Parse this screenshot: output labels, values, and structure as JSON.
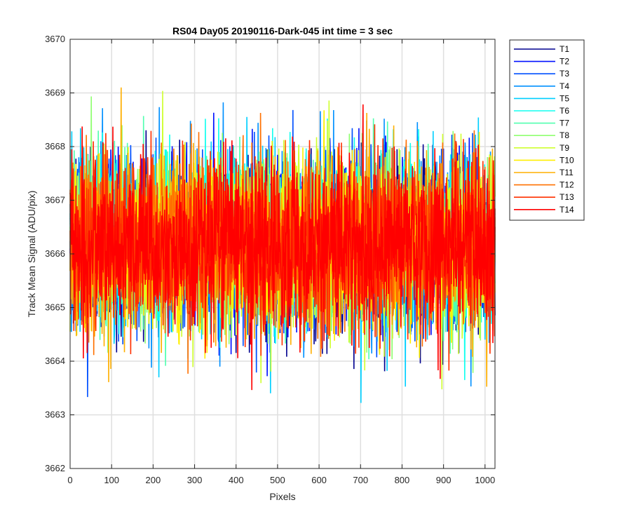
{
  "chart_data": {
    "type": "line",
    "title": "RS04 Day05 20190116-Dark-045 int time = 3 sec",
    "xlabel": "Pixels",
    "ylabel": "Track Mean Signal (ADU/pix)",
    "xlim": [
      0,
      1024
    ],
    "ylim": [
      3662,
      3670
    ],
    "xticks": [
      0,
      100,
      200,
      300,
      400,
      500,
      600,
      700,
      800,
      900,
      1000
    ],
    "yticks": [
      3662,
      3663,
      3664,
      3665,
      3666,
      3667,
      3668,
      3669,
      3670
    ],
    "grid": true,
    "legend_position": "outside-right-top",
    "noise_mean": 3666.2,
    "series": [
      {
        "name": "T1",
        "color": "#00008F"
      },
      {
        "name": "T2",
        "color": "#0010FF"
      },
      {
        "name": "T3",
        "color": "#0050FF"
      },
      {
        "name": "T4",
        "color": "#0090FF"
      },
      {
        "name": "T5",
        "color": "#00CFFF"
      },
      {
        "name": "T6",
        "color": "#10FFEF"
      },
      {
        "name": "T7",
        "color": "#50FFAF"
      },
      {
        "name": "T8",
        "color": "#8FFF70"
      },
      {
        "name": "T9",
        "color": "#CFFF30"
      },
      {
        "name": "T10",
        "color": "#FFEF00"
      },
      {
        "name": "T11",
        "color": "#FFAF00"
      },
      {
        "name": "T12",
        "color": "#FF7000"
      },
      {
        "name": "T13",
        "color": "#FF3000"
      },
      {
        "name": "T14",
        "color": "#FF0000"
      }
    ]
  }
}
